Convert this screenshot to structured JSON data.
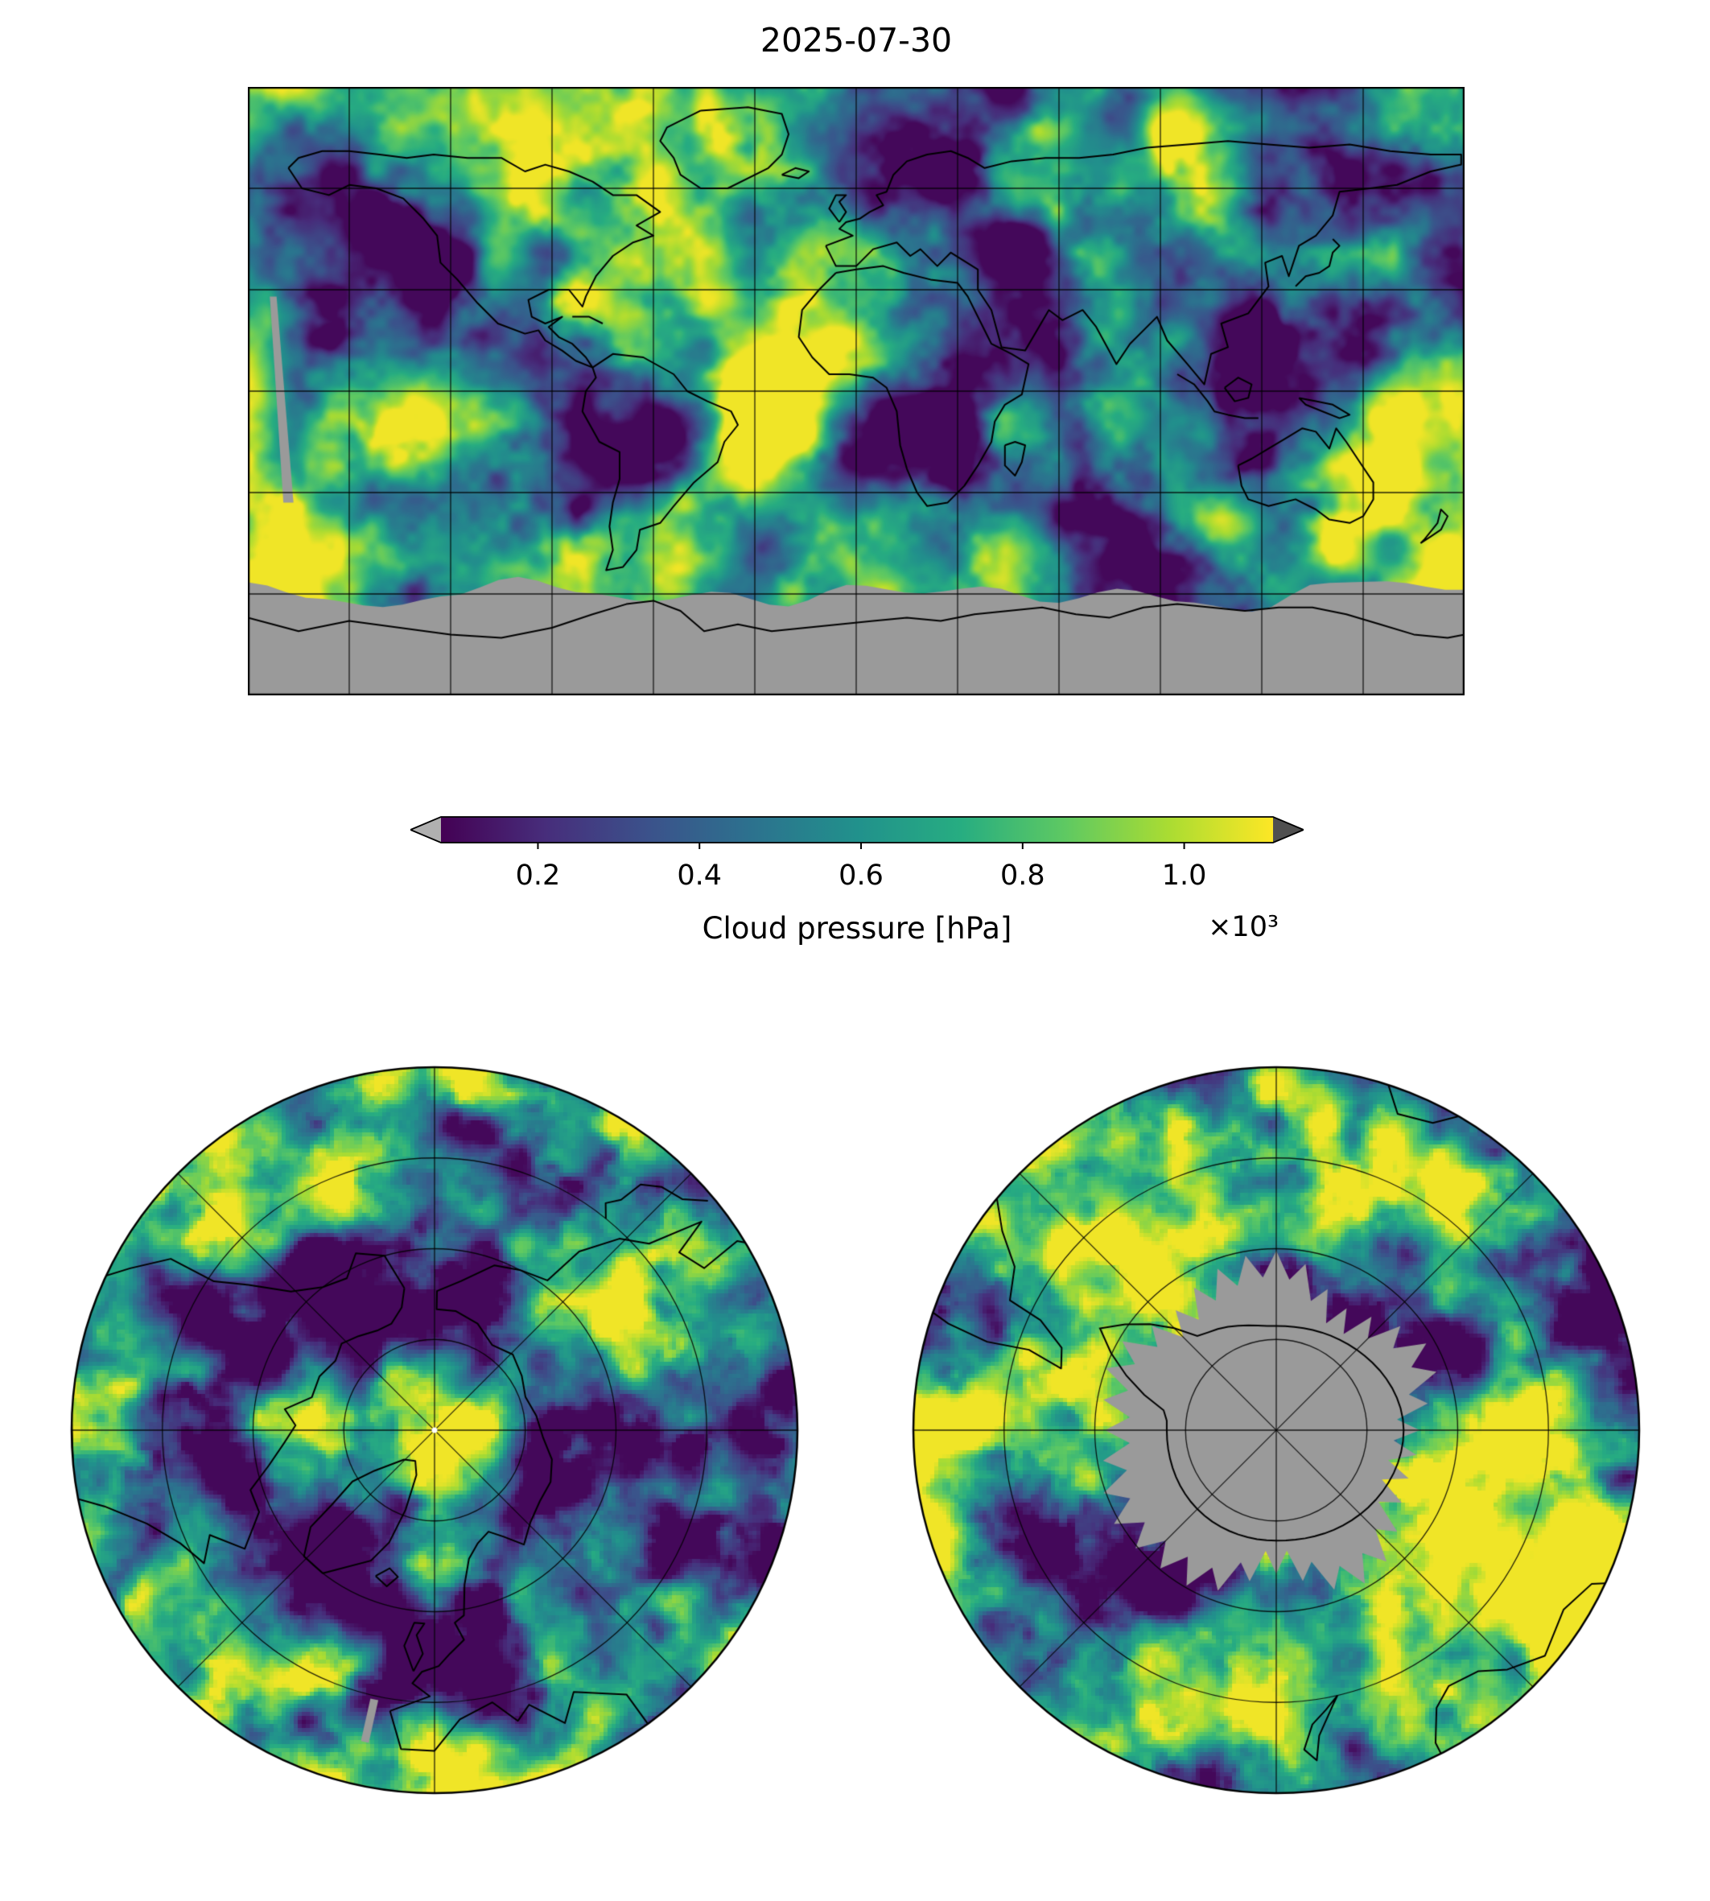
{
  "title": "2025-07-30",
  "colorbar": {
    "label": "Cloud pressure [hPa]",
    "scale_note": "×10³",
    "ticks": [
      {
        "label": "0.2",
        "value": 0.2
      },
      {
        "label": "0.4",
        "value": 0.4
      },
      {
        "label": "0.6",
        "value": 0.6
      },
      {
        "label": "0.8",
        "value": 0.8
      },
      {
        "label": "1.0",
        "value": 1.0
      }
    ],
    "vmin": 0.08,
    "vmax": 1.11,
    "under_arrow_color": "#b0b0b0",
    "over_arrow_color": "#505050"
  },
  "colors": {
    "missing_data": "#9a9a9a",
    "coastline": "#000000",
    "gridline": "#000000",
    "background": "#ffffff"
  },
  "viridis": [
    "#440154",
    "#472d7b",
    "#3b528b",
    "#2c728e",
    "#21918c",
    "#27ad81",
    "#5ec962",
    "#aadc32",
    "#fde725"
  ],
  "chart_data": {
    "type": "heatmap",
    "title": "2025-07-30",
    "variable": "Cloud pressure",
    "units": "hPa",
    "scale_note": "×10³",
    "colormap": "viridis",
    "colorbar_orientation": "horizontal",
    "colorbar_extend": "both",
    "colorbar_ticks": [
      0.2,
      0.4,
      0.6,
      0.8,
      1.0
    ],
    "value_range": [
      0.08,
      1.11
    ],
    "panels": [
      {
        "name": "global-map",
        "projection": "equirectangular",
        "extent": "global",
        "gridlines": "meridians and parallels every 30°",
        "missing_data": "gray region over Antarctica / high southern latitudes and a narrow orbit-gap streak in the eastern Pacific"
      },
      {
        "name": "north-polar-map",
        "projection": "north polar",
        "gridlines": "8 radial meridians every 45°, 3 parallel circles",
        "missing_data": "small gray orbit-gap sliver near southern edge"
      },
      {
        "name": "south-polar-map",
        "projection": "south polar",
        "gridlines": "8 radial meridians every 45°, 3 parallel circles",
        "missing_data": "gray jagged region over the Antarctic continent"
      }
    ]
  }
}
